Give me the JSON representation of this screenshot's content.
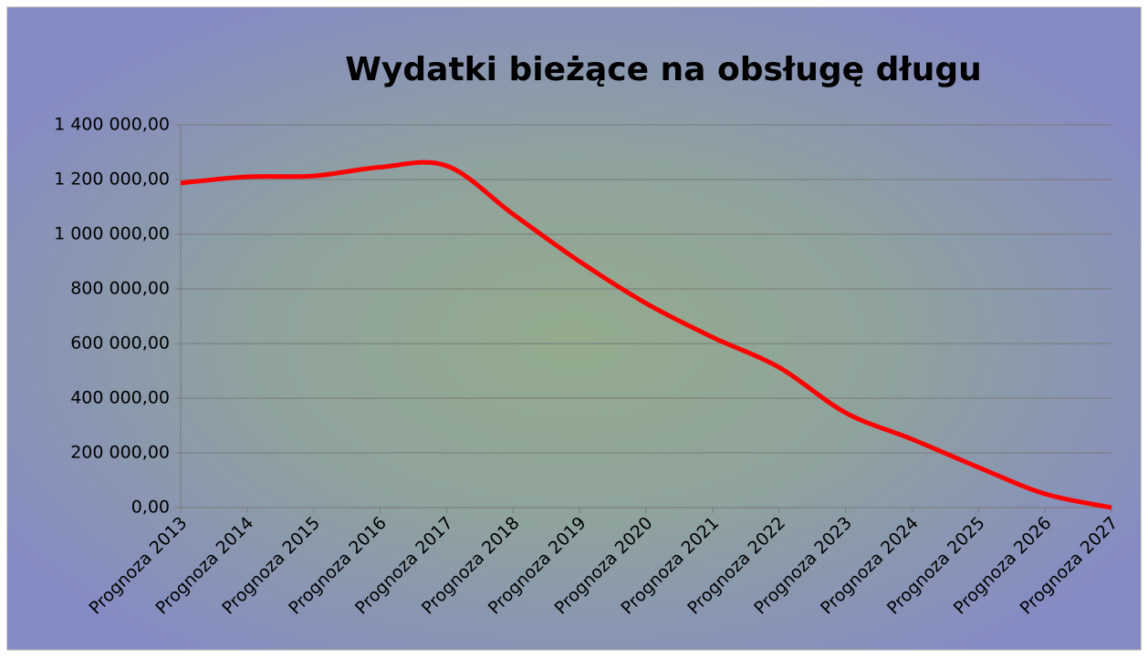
{
  "chart_data": {
    "type": "line",
    "title": "Wydatki bieżące na obsługę długu",
    "categories": [
      "Prognoza 2013",
      "Prognoza 2014",
      "Prognoza 2015",
      "Prognoza 2016",
      "Prognoza 2017",
      "Prognoza 2018",
      "Prognoza 2019",
      "Prognoza 2020",
      "Prognoza 2021",
      "Prognoza 2022",
      "Prognoza 2023",
      "Prognoza 2024",
      "Prognoza 2025",
      "Prognoza 2026",
      "Prognoza 2027"
    ],
    "series": [
      {
        "name": "Wydatki bieżące na obsługę długu",
        "color": "#ff0000",
        "values": [
          1187000,
          1210000,
          1213000,
          1245000,
          1250000,
          1073000,
          900000,
          747000,
          623000,
          513000,
          347000,
          250000,
          147000,
          50000,
          0
        ]
      }
    ],
    "ylim": [
      0,
      1400000
    ],
    "yticks": [
      {
        "value": 0,
        "label": "0,00"
      },
      {
        "value": 200000,
        "label": "200 000,00"
      },
      {
        "value": 400000,
        "label": "400 000,00"
      },
      {
        "value": 600000,
        "label": "600 000,00"
      },
      {
        "value": 800000,
        "label": "800 000,00"
      },
      {
        "value": 1000000,
        "label": "1 000 000,00"
      },
      {
        "value": 1200000,
        "label": "1 200 000,00"
      },
      {
        "value": 1400000,
        "label": "1 400 000,00"
      }
    ],
    "grid": true,
    "smooth": true
  }
}
